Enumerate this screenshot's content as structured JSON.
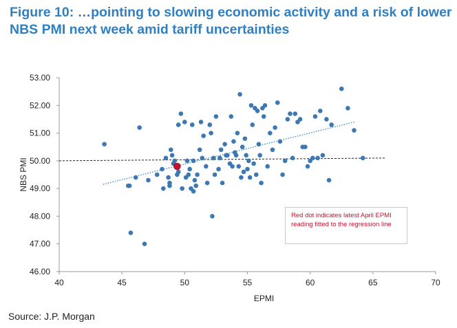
{
  "title_line1": "Figure 10: …pointing to slowing economic activity and a risk of lower",
  "title_line2": "NBS PMI next week amid tariff uncertainties",
  "source": "Source: J.P. Morgan",
  "colors": {
    "title": "#2f7fc1",
    "points": "#3c78b4",
    "highlight": "#c8102e",
    "trendline": "#3c8fc8",
    "reference_line": "#222222",
    "annotation_text": "#c8102e",
    "axis": "#9a9a9a"
  },
  "chart_data": {
    "type": "scatter",
    "xlabel": "EPMI",
    "ylabel": "NBS PMI",
    "xlim": [
      40,
      70
    ],
    "ylim": [
      46,
      53
    ],
    "xticks": [
      40,
      45,
      50,
      55,
      60,
      65,
      70
    ],
    "yticks": [
      46.0,
      47.0,
      48.0,
      49.0,
      50.0,
      51.0,
      52.0,
      53.0
    ],
    "ytick_labels": [
      "46.00",
      "47.00",
      "48.00",
      "49.00",
      "50.00",
      "51.00",
      "52.00",
      "53.00"
    ],
    "grid": false,
    "annotation": "Red dot indicates latest April EPMI reading fitted to the regression line",
    "highlight_point": {
      "x": 49.4,
      "y": 49.8
    },
    "trendline": {
      "x": [
        43.5,
        63.5
      ],
      "y": [
        49.15,
        51.4
      ]
    },
    "reference_line": {
      "x": [
        40,
        66
      ],
      "y": [
        50.0,
        50.1
      ]
    },
    "points": [
      [
        43.6,
        50.6
      ],
      [
        45.5,
        49.1
      ],
      [
        45.6,
        49.1
      ],
      [
        45.7,
        47.4
      ],
      [
        46.1,
        49.4
      ],
      [
        46.4,
        51.2
      ],
      [
        46.8,
        47.0
      ],
      [
        47.1,
        49.3
      ],
      [
        47.8,
        49.5
      ],
      [
        48.2,
        49.7
      ],
      [
        48.3,
        49.0
      ],
      [
        48.5,
        50.1
      ],
      [
        48.7,
        49.4
      ],
      [
        48.8,
        49.2
      ],
      [
        48.8,
        49.1
      ],
      [
        48.9,
        50.4
      ],
      [
        49.0,
        50.2
      ],
      [
        49.1,
        49.9
      ],
      [
        49.2,
        50.0
      ],
      [
        49.3,
        49.8
      ],
      [
        49.4,
        49.5
      ],
      [
        49.5,
        49.6
      ],
      [
        49.5,
        51.3
      ],
      [
        49.7,
        51.7
      ],
      [
        49.8,
        49.0
      ],
      [
        50.0,
        51.4
      ],
      [
        50.1,
        49.4
      ],
      [
        50.2,
        50.0
      ],
      [
        50.3,
        49.5
      ],
      [
        50.4,
        49.7
      ],
      [
        50.5,
        49.0
      ],
      [
        50.6,
        51.3
      ],
      [
        50.7,
        48.9
      ],
      [
        50.7,
        50.0
      ],
      [
        50.8,
        49.3
      ],
      [
        50.9,
        49.1
      ],
      [
        51.0,
        49.5
      ],
      [
        51.2,
        50.4
      ],
      [
        51.3,
        51.4
      ],
      [
        51.4,
        50.1
      ],
      [
        51.5,
        50.9
      ],
      [
        51.7,
        49.8
      ],
      [
        51.8,
        49.2
      ],
      [
        52.0,
        51.3
      ],
      [
        52.1,
        51.0
      ],
      [
        52.2,
        48.0
      ],
      [
        52.3,
        50.1
      ],
      [
        52.4,
        49.5
      ],
      [
        52.5,
        51.6
      ],
      [
        52.7,
        49.7
      ],
      [
        52.8,
        50.1
      ],
      [
        52.9,
        50.4
      ],
      [
        53.0,
        49.2
      ],
      [
        53.2,
        50.6
      ],
      [
        53.3,
        50.2
      ],
      [
        53.4,
        50.2
      ],
      [
        53.6,
        49.9
      ],
      [
        53.7,
        51.6
      ],
      [
        53.8,
        49.8
      ],
      [
        53.9,
        50.7
      ],
      [
        54.0,
        50.3
      ],
      [
        54.1,
        50.2
      ],
      [
        54.2,
        51.0
      ],
      [
        54.3,
        49.8
      ],
      [
        54.4,
        52.4
      ],
      [
        54.5,
        49.4
      ],
      [
        54.6,
        50.5
      ],
      [
        54.7,
        49.6
      ],
      [
        54.8,
        50.8
      ],
      [
        54.9,
        50.2
      ],
      [
        55.0,
        49.7
      ],
      [
        55.1,
        50.0
      ],
      [
        55.2,
        49.4
      ],
      [
        55.3,
        52.0
      ],
      [
        55.4,
        51.3
      ],
      [
        55.5,
        49.9
      ],
      [
        55.6,
        51.9
      ],
      [
        55.7,
        49.5
      ],
      [
        55.8,
        51.8
      ],
      [
        55.9,
        50.6
      ],
      [
        56.0,
        50.2
      ],
      [
        56.1,
        49.2
      ],
      [
        56.2,
        51.9
      ],
      [
        56.3,
        51.6
      ],
      [
        56.4,
        52.0
      ],
      [
        56.6,
        49.8
      ],
      [
        56.8,
        51.0
      ],
      [
        57.0,
        50.4
      ],
      [
        57.2,
        51.2
      ],
      [
        57.4,
        52.1
      ],
      [
        57.6,
        50.7
      ],
      [
        57.8,
        49.5
      ],
      [
        58.0,
        50.0
      ],
      [
        58.2,
        51.5
      ],
      [
        58.4,
        51.7
      ],
      [
        58.6,
        50.1
      ],
      [
        58.8,
        51.7
      ],
      [
        59.0,
        51.4
      ],
      [
        59.2,
        51.5
      ],
      [
        59.4,
        50.5
      ],
      [
        59.6,
        50.5
      ],
      [
        59.8,
        49.8
      ],
      [
        60.0,
        50.0
      ],
      [
        60.2,
        50.1
      ],
      [
        60.4,
        51.6
      ],
      [
        60.6,
        50.1
      ],
      [
        60.8,
        51.8
      ],
      [
        61.0,
        50.2
      ],
      [
        61.3,
        51.5
      ],
      [
        61.5,
        49.3
      ],
      [
        61.7,
        51.3
      ],
      [
        62.5,
        52.6
      ],
      [
        63.0,
        51.9
      ],
      [
        63.5,
        51.1
      ],
      [
        64.2,
        50.1
      ]
    ]
  }
}
